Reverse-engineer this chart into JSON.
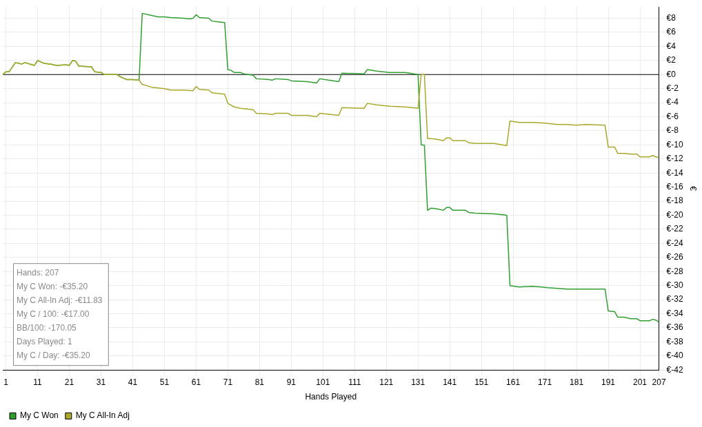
{
  "chart_data": {
    "type": "line",
    "xlabel": "Hands Played",
    "ylabel": "€",
    "xlim": [
      0,
      207
    ],
    "xticks": [
      1,
      11,
      21,
      31,
      41,
      51,
      61,
      71,
      81,
      91,
      101,
      111,
      121,
      131,
      141,
      151,
      161,
      171,
      181,
      191,
      201,
      207
    ],
    "ylim": [
      -42,
      9.6
    ],
    "yticks": [
      {
        "value": -42,
        "label": "€-42"
      },
      {
        "value": -40,
        "label": "€-40"
      },
      {
        "value": -38,
        "label": "€-38"
      },
      {
        "value": -36,
        "label": "€-36"
      },
      {
        "value": -34,
        "label": "€-34"
      },
      {
        "value": -32,
        "label": "€-32"
      },
      {
        "value": -30,
        "label": "€-30"
      },
      {
        "value": -28,
        "label": "€-28"
      },
      {
        "value": -26,
        "label": "€-26"
      },
      {
        "value": -24,
        "label": "€-24"
      },
      {
        "value": -22,
        "label": "€-22"
      },
      {
        "value": -20,
        "label": "€-20"
      },
      {
        "value": -18,
        "label": "€-18"
      },
      {
        "value": -16,
        "label": "€-16"
      },
      {
        "value": -14,
        "label": "€-14"
      },
      {
        "value": -12,
        "label": "€-12"
      },
      {
        "value": -10,
        "label": "€-10"
      },
      {
        "value": -8,
        "label": "€-8"
      },
      {
        "value": -6,
        "label": "€-6"
      },
      {
        "value": -4,
        "label": "€-4"
      },
      {
        "value": -2,
        "label": "€-2"
      },
      {
        "value": 0,
        "label": "€0"
      },
      {
        "value": 2,
        "label": "€2"
      },
      {
        "value": 4,
        "label": "€4"
      },
      {
        "value": 6,
        "label": "€6"
      },
      {
        "value": 8,
        "label": "€8"
      }
    ],
    "grid": true,
    "legend": "bottom left",
    "marker": "none",
    "line_style": "solid",
    "ref_lines": [
      {
        "axis": "y",
        "value": 0,
        "color": "#000000"
      }
    ],
    "annotations": [
      "Hands: 207",
      "My C Won: -€35.20",
      "My C All-In Adj: -€11.83",
      "My C / 100: -€17.00",
      "BB/100: -170.05",
      "Days Played: 1",
      "My C / Day: -€35.20"
    ],
    "series": [
      {
        "name": "My C All-In Adj",
        "color": "#a8a82a",
        "x": [
          0,
          1,
          2,
          4,
          6,
          7,
          10,
          11,
          13,
          15,
          17,
          20,
          21,
          22,
          23,
          24,
          28,
          29,
          31,
          32,
          36,
          37,
          39,
          41,
          43,
          44,
          47,
          49,
          51,
          53,
          57,
          60,
          61,
          62,
          65,
          66,
          70,
          71,
          73,
          75,
          79,
          80,
          84,
          85,
          86,
          90,
          91,
          96,
          99,
          100,
          106,
          107,
          114,
          115,
          118,
          122,
          127,
          131,
          132,
          133,
          134,
          135,
          137,
          139,
          140,
          141,
          142,
          146,
          147,
          149,
          155,
          159,
          160,
          163,
          167,
          171,
          175,
          178,
          181,
          184,
          190,
          191,
          193,
          194,
          196,
          198,
          200,
          201,
          204,
          205,
          206,
          207
        ],
        "values": [
          0,
          0.4,
          0.4,
          1.7,
          1.5,
          1.7,
          1.3,
          2.0,
          1.6,
          1.5,
          1.3,
          1.4,
          1.3,
          2.0,
          1.9,
          1.2,
          1.1,
          0.4,
          0.3,
          0,
          0,
          -0.3,
          -0.7,
          -0.7,
          -0.8,
          -1.4,
          -1.8,
          -1.9,
          -2.0,
          -2.2,
          -2.2,
          -2.3,
          -1.7,
          -2.1,
          -2.2,
          -2.6,
          -2.8,
          -4.1,
          -4.6,
          -4.8,
          -5.0,
          -5.5,
          -5.6,
          -5.7,
          -5.5,
          -5.5,
          -5.8,
          -5.8,
          -6.0,
          -5.5,
          -5.8,
          -4.7,
          -4.8,
          -4.1,
          -4.3,
          -4.5,
          -4.6,
          -4.8,
          0,
          0,
          -9.1,
          -9.1,
          -9.2,
          -9.4,
          -9.0,
          -9.0,
          -9.4,
          -9.4,
          -9.7,
          -9.8,
          -9.8,
          -10.1,
          -6.6,
          -6.8,
          -6.8,
          -6.9,
          -7.1,
          -7.1,
          -7.2,
          -7.1,
          -7.2,
          -10.3,
          -10.3,
          -11.2,
          -11.2,
          -11.3,
          -11.3,
          -11.7,
          -11.7,
          -11.5,
          -11.7,
          -11.8
        ]
      },
      {
        "name": "My C Won",
        "color": "#2f9e2f",
        "x": [
          0,
          1,
          2,
          4,
          6,
          7,
          10,
          11,
          13,
          15,
          17,
          20,
          21,
          22,
          23,
          24,
          28,
          29,
          31,
          32,
          36,
          37,
          39,
          41,
          43,
          44,
          47,
          49,
          51,
          53,
          57,
          59,
          60,
          61,
          62,
          65,
          66,
          68,
          70,
          71,
          72,
          73,
          75,
          76,
          79,
          80,
          84,
          85,
          86,
          90,
          91,
          96,
          99,
          100,
          103,
          106,
          107,
          114,
          115,
          118,
          122,
          127,
          131,
          132,
          133,
          134,
          135,
          137,
          139,
          140,
          141,
          142,
          146,
          147,
          149,
          155,
          159,
          160,
          163,
          167,
          170,
          172,
          175,
          178,
          181,
          184,
          190,
          191,
          193,
          194,
          196,
          198,
          200,
          201,
          204,
          205,
          206,
          207
        ],
        "values": [
          0,
          0.4,
          0.4,
          1.7,
          1.5,
          1.7,
          1.3,
          2.0,
          1.6,
          1.5,
          1.3,
          1.4,
          1.3,
          2.0,
          1.9,
          1.2,
          1.1,
          0.4,
          0.3,
          0,
          0,
          -0.3,
          -0.7,
          -0.7,
          -0.8,
          8.7,
          8.4,
          8.2,
          8.2,
          8.1,
          8.0,
          7.9,
          8.0,
          8.5,
          8.1,
          8.0,
          7.6,
          7.5,
          7.4,
          0.7,
          0.6,
          0.3,
          0.3,
          0.1,
          -0.1,
          -0.6,
          -0.7,
          -0.8,
          -0.6,
          -0.7,
          -0.9,
          -1.0,
          -1.2,
          -0.6,
          -0.8,
          -1.0,
          0.2,
          0.1,
          0.7,
          0.5,
          0.3,
          0.3,
          0,
          -10.0,
          -10.0,
          -19.3,
          -19.0,
          -19.1,
          -19.3,
          -18.9,
          -18.9,
          -19.3,
          -19.3,
          -19.6,
          -19.7,
          -19.8,
          -20.0,
          -30.0,
          -30.2,
          -30.1,
          -30.2,
          -30.3,
          -30.4,
          -30.5,
          -30.5,
          -30.5,
          -30.5,
          -33.6,
          -33.7,
          -34.5,
          -34.5,
          -34.7,
          -34.7,
          -35.0,
          -35.0,
          -34.8,
          -34.9,
          -35.2
        ]
      }
    ]
  }
}
